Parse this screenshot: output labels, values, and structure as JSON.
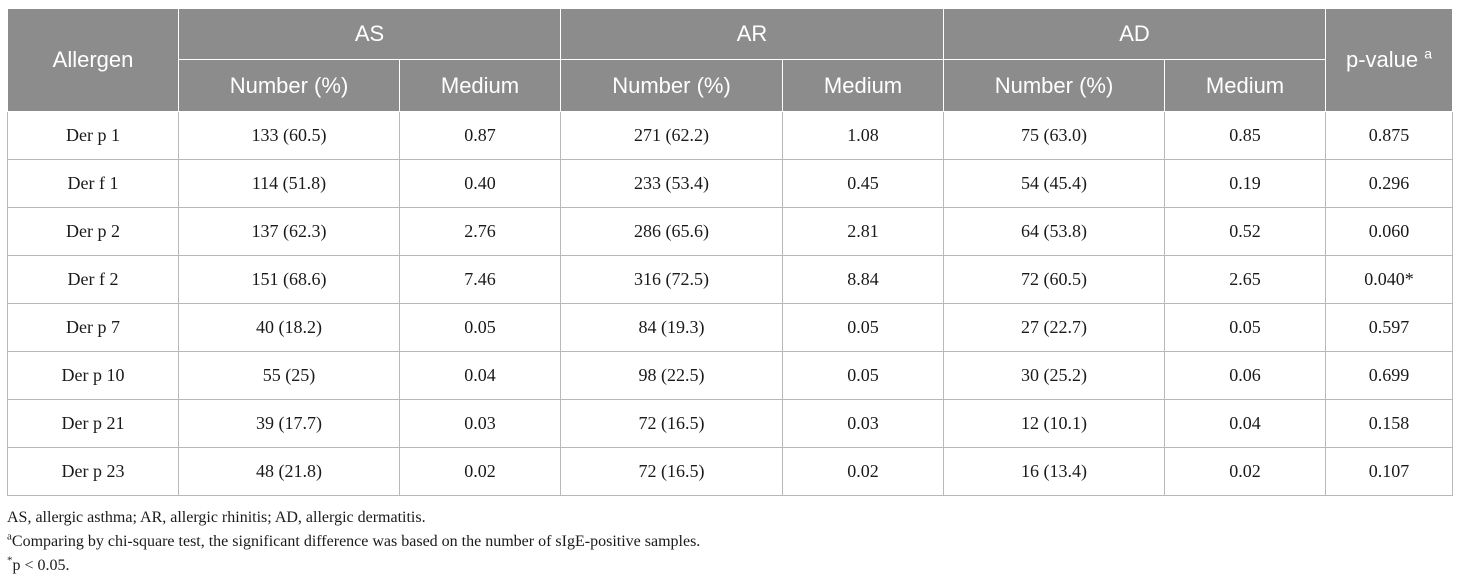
{
  "table": {
    "header": {
      "allergen": "Allergen",
      "groups": [
        "AS",
        "AR",
        "AD"
      ],
      "sub_number": "Number (%)",
      "sub_medium": "Medium",
      "pvalue": "p-value",
      "pvalue_sup": "a"
    },
    "rows": [
      {
        "allergen": "Der p 1",
        "as_num": "133 (60.5)",
        "as_med": "0.87",
        "ar_num": "271 (62.2)",
        "ar_med": "1.08",
        "ad_num": "75 (63.0)",
        "ad_med": "0.85",
        "p": "0.875"
      },
      {
        "allergen": "Der f 1",
        "as_num": "114 (51.8)",
        "as_med": "0.40",
        "ar_num": "233 (53.4)",
        "ar_med": "0.45",
        "ad_num": "54 (45.4)",
        "ad_med": "0.19",
        "p": "0.296"
      },
      {
        "allergen": "Der p 2",
        "as_num": "137 (62.3)",
        "as_med": "2.76",
        "ar_num": "286 (65.6)",
        "ar_med": "2.81",
        "ad_num": "64 (53.8)",
        "ad_med": "0.52",
        "p": "0.060"
      },
      {
        "allergen": "Der f 2",
        "as_num": "151 (68.6)",
        "as_med": "7.46",
        "ar_num": "316 (72.5)",
        "ar_med": "8.84",
        "ad_num": "72 (60.5)",
        "ad_med": "2.65",
        "p": "0.040*"
      },
      {
        "allergen": "Der p 7",
        "as_num": "40 (18.2)",
        "as_med": "0.05",
        "ar_num": "84 (19.3)",
        "ar_med": "0.05",
        "ad_num": "27 (22.7)",
        "ad_med": "0.05",
        "p": "0.597"
      },
      {
        "allergen": "Der p 10",
        "as_num": "55 (25)",
        "as_med": "0.04",
        "ar_num": "98 (22.5)",
        "ar_med": "0.05",
        "ad_num": "30 (25.2)",
        "ad_med": "0.06",
        "p": "0.699"
      },
      {
        "allergen": "Der p 21",
        "as_num": "39 (17.7)",
        "as_med": "0.03",
        "ar_num": "72 (16.5)",
        "ar_med": "0.03",
        "ad_num": "12 (10.1)",
        "ad_med": "0.04",
        "p": "0.158"
      },
      {
        "allergen": "Der p 23",
        "as_num": "48 (21.8)",
        "as_med": "0.02",
        "ar_num": "72 (16.5)",
        "ar_med": "0.02",
        "ad_num": "16 (13.4)",
        "ad_med": "0.02",
        "p": "0.107"
      }
    ]
  },
  "footnotes": {
    "abbrev": "AS, allergic asthma; AR, allergic rhinitis; AD, allergic dermatitis.",
    "note_a_mark": "a",
    "note_a": "Comparing by chi-square test, the significant difference was based on the number of sIgE-positive samples.",
    "note_star_mark": "*",
    "note_star": "p < 0.05."
  },
  "colors": {
    "header_bg": "#8c8c8c",
    "header_text": "#ffffff",
    "grid_line": "#b8b8b8"
  }
}
